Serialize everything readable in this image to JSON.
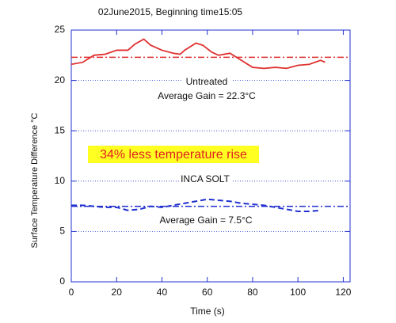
{
  "chart_data": {
    "type": "line",
    "title": "02June2015, Beginning time15:05",
    "x_label": "Time (s)",
    "y_label": "Surface Temperature Difference °C",
    "series": [
      {
        "name": "Untreated",
        "color": "#e03030",
        "dash": "solid",
        "x": [
          0,
          5,
          10,
          15,
          20,
          25,
          28,
          32,
          35,
          40,
          45,
          48,
          50,
          55,
          58,
          62,
          65,
          70,
          75,
          80,
          85,
          90,
          95,
          100,
          105,
          110,
          112
        ],
        "values": [
          21.6,
          21.8,
          22.5,
          22.6,
          23.0,
          23.0,
          23.6,
          24.1,
          23.5,
          23.0,
          22.7,
          22.6,
          23.0,
          23.7,
          23.5,
          22.8,
          22.5,
          22.7,
          22.0,
          21.3,
          21.2,
          21.3,
          21.2,
          21.5,
          21.6,
          22.0,
          21.8
        ]
      },
      {
        "name": "INCA SOLT",
        "color": "#2030d0",
        "dash": "dashed",
        "x": [
          0,
          5,
          10,
          15,
          20,
          25,
          30,
          35,
          40,
          45,
          50,
          55,
          60,
          65,
          70,
          75,
          80,
          85,
          90,
          95,
          100,
          105,
          110
        ],
        "values": [
          7.6,
          7.6,
          7.5,
          7.4,
          7.4,
          7.1,
          7.2,
          7.5,
          7.4,
          7.6,
          7.8,
          8.0,
          8.2,
          8.1,
          8.0,
          7.8,
          7.7,
          7.6,
          7.4,
          7.2,
          7.0,
          7.0,
          7.1
        ]
      }
    ],
    "reference_lines": [
      {
        "value": 22.3,
        "color": "#e03030"
      },
      {
        "value": 7.5,
        "color": "#2030d0"
      }
    ],
    "annotations": [
      "Average Gain = 22.3°C",
      "34% less temperature rise",
      "Average Gain = 7.5°C"
    ],
    "xlim": [
      0,
      123
    ],
    "xticks": [
      0,
      20,
      40,
      60,
      80,
      100,
      120
    ],
    "ylim": [
      0,
      25
    ],
    "yticks": [
      0,
      5,
      10,
      15,
      20,
      25
    ],
    "grid": true
  }
}
